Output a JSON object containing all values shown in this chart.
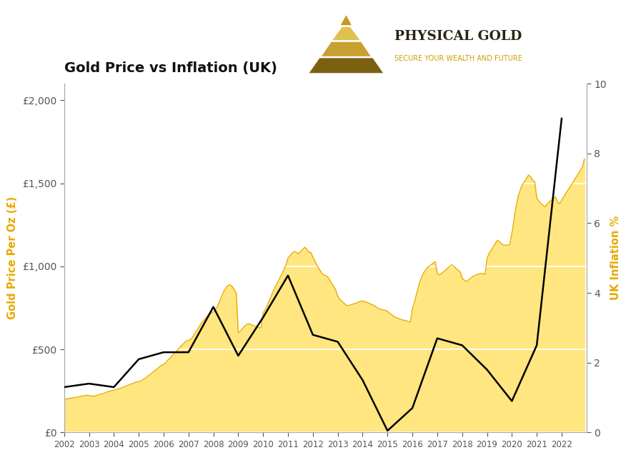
{
  "title": "Gold Price vs Inflation (UK)",
  "ylabel_left": "Gold Price Per Oz (£)",
  "ylabel_right": "UK Inflation %",
  "background_color": "#ffffff",
  "plot_bg_color": "#ffffff",
  "gold_fill_color": "#FFE680",
  "gold_line_color": "#E8A800",
  "inflation_line_color": "#000000",
  "years": [
    2002,
    2003,
    2004,
    2005,
    2006,
    2007,
    2008,
    2009,
    2010,
    2011,
    2012,
    2013,
    2014,
    2015,
    2016,
    2017,
    2018,
    2019,
    2020,
    2021,
    2022
  ],
  "gold_prices_monthly": [
    200,
    202,
    204,
    206,
    208,
    210,
    212,
    215,
    218,
    220,
    222,
    225,
    222,
    220,
    218,
    220,
    225,
    228,
    232,
    235,
    240,
    245,
    248,
    252,
    255,
    258,
    262,
    265,
    270,
    275,
    280,
    285,
    290,
    295,
    300,
    305,
    305,
    310,
    318,
    325,
    335,
    345,
    355,
    365,
    375,
    385,
    395,
    405,
    410,
    420,
    435,
    448,
    462,
    475,
    488,
    500,
    515,
    528,
    540,
    552,
    555,
    560,
    575,
    595,
    615,
    635,
    655,
    670,
    685,
    700,
    715,
    720,
    725,
    740,
    760,
    790,
    820,
    850,
    870,
    885,
    890,
    880,
    860,
    840,
    600,
    610,
    625,
    640,
    650,
    655,
    650,
    645,
    640,
    635,
    630,
    632,
    720,
    740,
    765,
    795,
    825,
    855,
    880,
    905,
    930,
    955,
    980,
    1010,
    1050,
    1065,
    1080,
    1090,
    1085,
    1075,
    1090,
    1100,
    1115,
    1105,
    1085,
    1085,
    1055,
    1030,
    1005,
    985,
    965,
    950,
    945,
    940,
    920,
    900,
    880,
    858,
    820,
    800,
    790,
    778,
    768,
    763,
    768,
    772,
    775,
    780,
    785,
    790,
    792,
    788,
    784,
    778,
    773,
    768,
    760,
    752,
    745,
    740,
    738,
    735,
    730,
    718,
    708,
    700,
    692,
    688,
    683,
    678,
    676,
    673,
    668,
    663,
    745,
    785,
    835,
    882,
    922,
    952,
    972,
    990,
    1000,
    1010,
    1020,
    1028,
    958,
    948,
    958,
    968,
    978,
    990,
    1000,
    1010,
    1000,
    988,
    978,
    968,
    928,
    918,
    908,
    918,
    928,
    938,
    944,
    950,
    954,
    958,
    955,
    952,
    1048,
    1078,
    1098,
    1118,
    1138,
    1158,
    1148,
    1138,
    1128,
    1128,
    1128,
    1132,
    1200,
    1280,
    1360,
    1420,
    1460,
    1490,
    1510,
    1530,
    1550,
    1540,
    1520,
    1510,
    1410,
    1395,
    1378,
    1368,
    1358,
    1375,
    1388,
    1398,
    1408,
    1418,
    1388,
    1378,
    1398,
    1418,
    1440,
    1460,
    1478,
    1498,
    1518,
    1538,
    1558,
    1578,
    1598,
    1648
  ],
  "inflation_x": [
    2002,
    2003,
    2004,
    2005,
    2006,
    2007,
    2008,
    2009,
    2010,
    2011,
    2012,
    2013,
    2014,
    2015,
    2016,
    2017,
    2018,
    2019,
    2020,
    2021,
    2022
  ],
  "inflation_y": [
    1.3,
    1.4,
    1.3,
    2.1,
    2.3,
    2.3,
    3.6,
    2.2,
    3.3,
    4.5,
    2.8,
    2.6,
    1.5,
    0.05,
    0.7,
    2.7,
    2.5,
    1.8,
    0.9,
    2.5,
    9.0
  ],
  "gold_ylim": [
    0,
    2100
  ],
  "inflation_ylim": [
    0,
    10
  ],
  "gold_yticks": [
    0,
    500,
    1000,
    1500,
    2000
  ],
  "gold_ytick_labels": [
    "£0",
    "£500",
    "£1,000",
    "£1,500",
    "£2,000"
  ],
  "inflation_yticks": [
    0,
    2,
    4,
    6,
    8,
    10
  ],
  "x_tick_years": [
    2002,
    2003,
    2004,
    2005,
    2006,
    2007,
    2008,
    2009,
    2010,
    2011,
    2012,
    2013,
    2014,
    2015,
    2016,
    2017,
    2018,
    2019,
    2020,
    2021,
    2022
  ],
  "logo_text_main": "PHYSICAL GOLD",
  "logo_text_sub": "SECURE YOUR WEALTH AND FUTURE",
  "logo_text_main_color": "#2b2414",
  "logo_text_sub_color": "#C8A000",
  "pyramid_colors": [
    "#7a6010",
    "#a08020",
    "#c8a030",
    "#e0c050",
    "#c89820"
  ],
  "grid_color": "#d0d0d0",
  "spine_color": "#aaaaaa",
  "tick_color": "#555555"
}
